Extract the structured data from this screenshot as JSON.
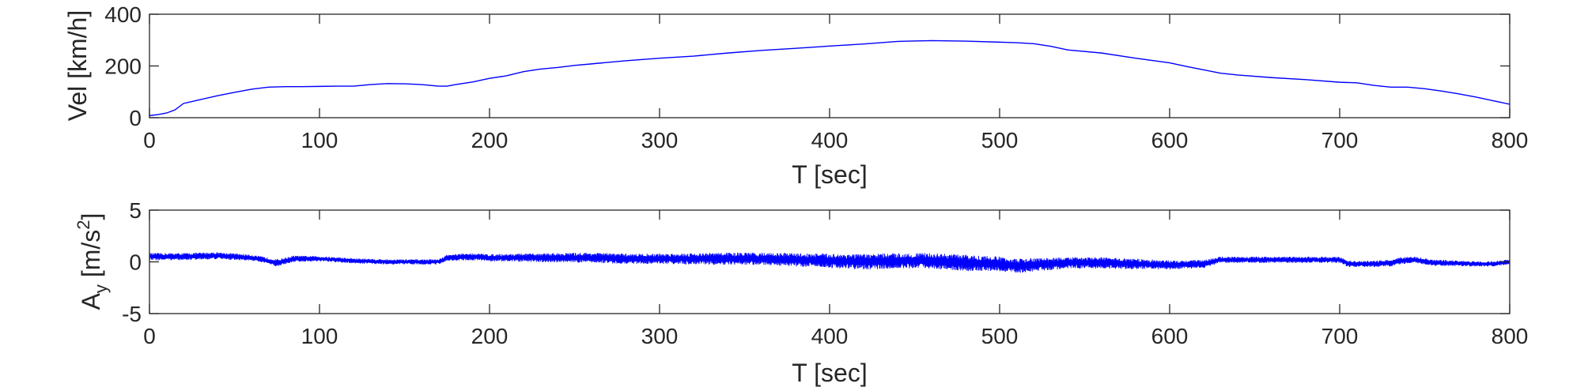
{
  "chart_data": [
    {
      "type": "line",
      "title": "",
      "xlabel": "T [sec]",
      "ylabel": "Vel [km/h]",
      "xlim": [
        0,
        800
      ],
      "ylim": [
        0,
        400
      ],
      "xticks": [
        0,
        100,
        200,
        300,
        400,
        500,
        600,
        700,
        800
      ],
      "yticks": [
        0,
        200,
        400
      ],
      "grid": false,
      "line_color": "#0000ff",
      "series": [
        {
          "x": [
            0,
            5,
            10,
            15,
            20,
            30,
            40,
            50,
            60,
            70,
            80,
            90,
            100,
            110,
            120,
            130,
            140,
            150,
            160,
            170,
            175,
            180,
            190,
            200,
            210,
            220,
            230,
            240,
            250,
            260,
            280,
            300,
            320,
            340,
            360,
            380,
            400,
            420,
            440,
            460,
            480,
            500,
            510,
            520,
            530,
            540,
            560,
            580,
            600,
            610,
            620,
            630,
            640,
            660,
            680,
            700,
            710,
            720,
            730,
            740,
            750,
            760,
            770,
            780,
            790,
            800
          ],
          "values": [
            8,
            12,
            18,
            30,
            55,
            70,
            85,
            98,
            110,
            118,
            120,
            120,
            121,
            122,
            122,
            128,
            132,
            131,
            128,
            122,
            122,
            128,
            138,
            152,
            162,
            178,
            188,
            194,
            202,
            208,
            220,
            230,
            238,
            250,
            260,
            268,
            277,
            285,
            295,
            298,
            296,
            292,
            290,
            286,
            276,
            262,
            250,
            230,
            212,
            198,
            185,
            172,
            165,
            155,
            147,
            137,
            135,
            125,
            118,
            118,
            112,
            103,
            92,
            80,
            66,
            52
          ]
        }
      ]
    },
    {
      "type": "line",
      "title": "",
      "xlabel": "T [sec]",
      "ylabel_main": "A",
      "ylabel_sub": "y",
      "ylabel_units_pre": " [m/s",
      "ylabel_units_sup": "2",
      "ylabel_units_post": "]",
      "xlim": [
        0,
        800
      ],
      "ylim": [
        -5,
        5
      ],
      "xticks": [
        0,
        100,
        200,
        300,
        400,
        500,
        600,
        700,
        800
      ],
      "yticks": [
        -5,
        0,
        5
      ],
      "grid": false,
      "line_color": "#0000ff",
      "series": [
        {
          "x": [
            0,
            20,
            40,
            60,
            70,
            75,
            85,
            100,
            120,
            140,
            160,
            170,
            175,
            190,
            200,
            220,
            240,
            260,
            280,
            300,
            320,
            340,
            360,
            380,
            400,
            420,
            440,
            460,
            480,
            500,
            510,
            520,
            530,
            540,
            560,
            580,
            600,
            620,
            630,
            640,
            660,
            680,
            700,
            705,
            720,
            730,
            735,
            745,
            755,
            760,
            780,
            790,
            800
          ],
          "center": [
            0.5,
            0.5,
            0.6,
            0.4,
            0.1,
            -0.1,
            0.3,
            0.3,
            0.1,
            0.0,
            0.0,
            0.0,
            0.4,
            0.5,
            0.4,
            0.4,
            0.4,
            0.4,
            0.3,
            0.3,
            0.3,
            0.3,
            0.3,
            0.2,
            0.1,
            0.0,
            0.1,
            0.1,
            -0.1,
            -0.2,
            -0.4,
            -0.3,
            -0.2,
            -0.1,
            -0.1,
            -0.2,
            -0.3,
            -0.2,
            0.2,
            0.2,
            0.2,
            0.2,
            0.2,
            -0.2,
            -0.2,
            -0.1,
            0.1,
            0.2,
            -0.1,
            -0.1,
            -0.2,
            -0.2,
            0.0
          ],
          "amplitude": [
            0.35,
            0.35,
            0.35,
            0.3,
            0.3,
            0.35,
            0.3,
            0.25,
            0.25,
            0.25,
            0.25,
            0.25,
            0.3,
            0.35,
            0.35,
            0.4,
            0.45,
            0.5,
            0.5,
            0.5,
            0.55,
            0.6,
            0.6,
            0.65,
            0.7,
            0.75,
            0.75,
            0.75,
            0.8,
            0.7,
            0.7,
            0.65,
            0.6,
            0.55,
            0.55,
            0.5,
            0.45,
            0.4,
            0.3,
            0.3,
            0.3,
            0.3,
            0.3,
            0.3,
            0.3,
            0.35,
            0.35,
            0.3,
            0.3,
            0.3,
            0.25,
            0.25,
            0.25
          ]
        }
      ]
    }
  ]
}
